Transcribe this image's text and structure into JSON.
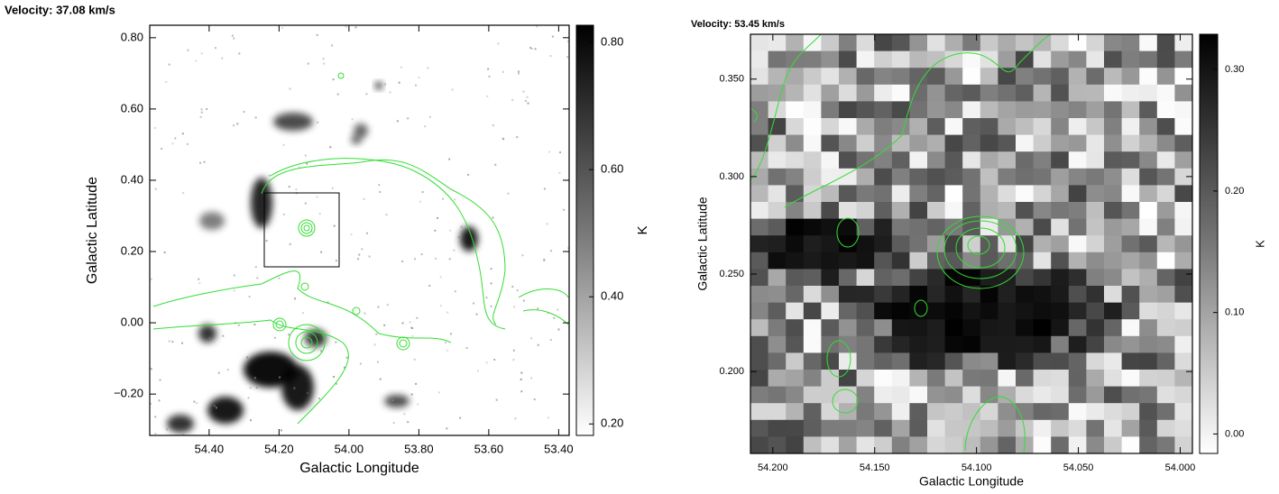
{
  "chart_data": [
    {
      "type": "image",
      "title": "Velocity: 37.08 km/s",
      "x_label": "Galactic Longitude",
      "y_label": "Galactic Latitude",
      "colorbar_label": "K",
      "xlim": [
        54.57,
        53.37
      ],
      "xticks": [
        {
          "value": 54.4,
          "label": "54.40"
        },
        {
          "value": 54.2,
          "label": "54.20"
        },
        {
          "value": 54.0,
          "label": "54.00"
        },
        {
          "value": 53.8,
          "label": "53.80"
        },
        {
          "value": 53.6,
          "label": "53.60"
        },
        {
          "value": 53.4,
          "label": "53.40"
        }
      ],
      "ylim": [
        -0.316,
        0.835
      ],
      "yticks": [
        {
          "value": -0.2,
          "label": "−0.20"
        },
        {
          "value": 0,
          "label": "0.00"
        },
        {
          "value": 0.2,
          "label": "0.20"
        },
        {
          "value": 0.4,
          "label": "0.40"
        },
        {
          "value": 0.6,
          "label": "0.60"
        },
        {
          "value": 0.8,
          "label": "0.80"
        }
      ],
      "clim": [
        0.182,
        0.827
      ],
      "cticks": [
        {
          "value": 0.2,
          "label": "0.20"
        },
        {
          "value": 0.4,
          "label": "0.40"
        },
        {
          "value": 0.6,
          "label": "0.60"
        },
        {
          "value": 0.8,
          "label": "0.80"
        }
      ],
      "contour_color": "#33dd33"
    },
    {
      "type": "image",
      "title": "Velocity: 53.45 km/s",
      "x_label": "Galactic Longitude",
      "y_label": "Galactic Latitude",
      "colorbar_label": "K",
      "xlim": [
        54.211,
        53.994
      ],
      "xticks": [
        {
          "value": 54.2,
          "label": "54.200"
        },
        {
          "value": 54.15,
          "label": "54.150"
        },
        {
          "value": 54.1,
          "label": "54.100"
        },
        {
          "value": 54.05,
          "label": "54.050"
        },
        {
          "value": 54.0,
          "label": "54.000"
        }
      ],
      "ylim": [
        0.158,
        0.373
      ],
      "yticks": [
        {
          "value": 0.2,
          "label": "0.200"
        },
        {
          "value": 0.25,
          "label": "0.250"
        },
        {
          "value": 0.3,
          "label": "0.300"
        },
        {
          "value": 0.35,
          "label": "0.350"
        }
      ],
      "clim": [
        -0.016,
        0.329
      ],
      "cticks": [
        {
          "value": 0,
          "label": "0.00"
        },
        {
          "value": 0.1,
          "label": "0.10"
        },
        {
          "value": 0.2,
          "label": "0.20"
        },
        {
          "value": 0.3,
          "label": "0.30"
        }
      ],
      "contour_color": "#33dd33"
    }
  ]
}
